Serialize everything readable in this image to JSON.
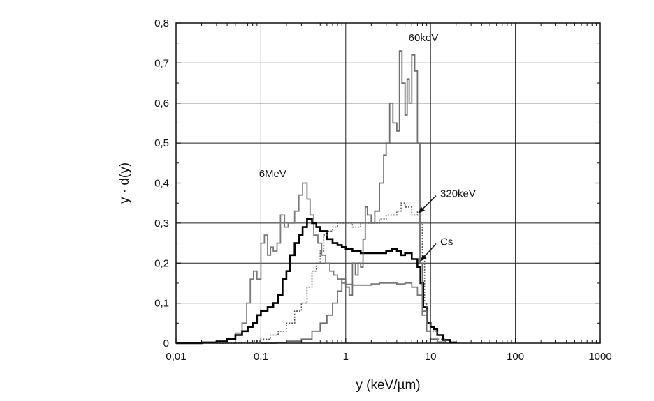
{
  "chart_data": {
    "type": "line",
    "title": "",
    "xlabel": "y (keV/µm)",
    "ylabel": "y · d(y)",
    "x_scale": "log",
    "xlim": [
      0.01,
      1000
    ],
    "ylim": [
      0,
      0.8
    ],
    "grid": true,
    "x_ticks": [
      {
        "value": 0.01,
        "label": "0,01"
      },
      {
        "value": 0.1,
        "label": "0,1"
      },
      {
        "value": 1,
        "label": "1"
      },
      {
        "value": 10,
        "label": "10"
      },
      {
        "value": 100,
        "label": "100"
      },
      {
        "value": 1000,
        "label": "1000"
      }
    ],
    "y_ticks": [
      {
        "value": 0,
        "label": "0"
      },
      {
        "value": 0.1,
        "label": "0,1"
      },
      {
        "value": 0.2,
        "label": "0,2"
      },
      {
        "value": 0.3,
        "label": "0,3"
      },
      {
        "value": 0.4,
        "label": "0,4"
      },
      {
        "value": 0.5,
        "label": "0,5"
      },
      {
        "value": 0.6,
        "label": "0,6"
      },
      {
        "value": 0.7,
        "label": "0,7"
      },
      {
        "value": 0.8,
        "label": "0,8"
      }
    ],
    "annotations": [
      {
        "text": "60keV",
        "x": 5.5,
        "y": 0.755,
        "arrow": false
      },
      {
        "text": "6MeV",
        "x": 0.095,
        "y": 0.415,
        "arrow": false
      },
      {
        "text": "320keV",
        "x": 13,
        "y": 0.365,
        "arrow": true,
        "arrow_to": [
          7.2,
          0.325
        ]
      },
      {
        "text": "Cs",
        "x": 13,
        "y": 0.245,
        "arrow": true,
        "arrow_to": [
          7.6,
          0.205
        ]
      }
    ],
    "series": [
      {
        "label": "6MeV",
        "color": "#7a7a7a",
        "style": "solid",
        "width": 1.8,
        "points": [
          [
            0.01,
            0
          ],
          [
            0.02,
            0.002
          ],
          [
            0.03,
            0.006
          ],
          [
            0.04,
            0.012
          ],
          [
            0.05,
            0.025
          ],
          [
            0.06,
            0.05
          ],
          [
            0.068,
            0.1
          ],
          [
            0.075,
            0.16
          ],
          [
            0.082,
            0.18
          ],
          [
            0.09,
            0.16
          ],
          [
            0.1,
            0.25
          ],
          [
            0.11,
            0.27
          ],
          [
            0.12,
            0.22
          ],
          [
            0.13,
            0.24
          ],
          [
            0.14,
            0.23
          ],
          [
            0.155,
            0.25
          ],
          [
            0.17,
            0.32
          ],
          [
            0.19,
            0.29
          ],
          [
            0.21,
            0.3
          ],
          [
            0.23,
            0.3
          ],
          [
            0.25,
            0.33
          ],
          [
            0.28,
            0.37
          ],
          [
            0.31,
            0.4
          ],
          [
            0.35,
            0.36
          ],
          [
            0.38,
            0.32
          ],
          [
            0.42,
            0.27
          ],
          [
            0.47,
            0.25
          ],
          [
            0.52,
            0.22
          ],
          [
            0.58,
            0.2
          ],
          [
            0.65,
            0.18
          ],
          [
            0.72,
            0.17
          ],
          [
            0.8,
            0.16
          ],
          [
            0.9,
            0.15
          ],
          [
            1.0,
            0.147
          ],
          [
            1.2,
            0.145
          ],
          [
            1.5,
            0.145
          ],
          [
            2.0,
            0.148
          ],
          [
            2.5,
            0.15
          ],
          [
            3.0,
            0.15
          ],
          [
            4.0,
            0.148
          ],
          [
            5.0,
            0.15
          ],
          [
            6.0,
            0.14
          ],
          [
            7.0,
            0.12
          ],
          [
            8.0,
            0.07
          ],
          [
            9.0,
            0.03
          ],
          [
            10,
            0.01
          ],
          [
            12,
            0.003
          ],
          [
            15,
            0
          ]
        ]
      },
      {
        "label": "Cs",
        "color": "#000000",
        "style": "solid",
        "width": 2.6,
        "points": [
          [
            0.01,
            0
          ],
          [
            0.02,
            0.002
          ],
          [
            0.03,
            0.004
          ],
          [
            0.04,
            0.01
          ],
          [
            0.05,
            0.02
          ],
          [
            0.06,
            0.03
          ],
          [
            0.07,
            0.04
          ],
          [
            0.08,
            0.05
          ],
          [
            0.09,
            0.07
          ],
          [
            0.1,
            0.08
          ],
          [
            0.12,
            0.09
          ],
          [
            0.14,
            0.1
          ],
          [
            0.16,
            0.12
          ],
          [
            0.18,
            0.16
          ],
          [
            0.2,
            0.18
          ],
          [
            0.22,
            0.22
          ],
          [
            0.25,
            0.25
          ],
          [
            0.28,
            0.27
          ],
          [
            0.31,
            0.29
          ],
          [
            0.35,
            0.31
          ],
          [
            0.4,
            0.3
          ],
          [
            0.45,
            0.29
          ],
          [
            0.5,
            0.28
          ],
          [
            0.6,
            0.26
          ],
          [
            0.7,
            0.25
          ],
          [
            0.8,
            0.245
          ],
          [
            0.9,
            0.24
          ],
          [
            1.0,
            0.235
          ],
          [
            1.2,
            0.23
          ],
          [
            1.5,
            0.225
          ],
          [
            2.0,
            0.225
          ],
          [
            2.5,
            0.225
          ],
          [
            3.0,
            0.23
          ],
          [
            3.5,
            0.235
          ],
          [
            4.0,
            0.23
          ],
          [
            4.5,
            0.22
          ],
          [
            5.0,
            0.225
          ],
          [
            6.0,
            0.21
          ],
          [
            7.0,
            0.19
          ],
          [
            7.6,
            0.15
          ],
          [
            8.2,
            0.09
          ],
          [
            9.0,
            0.05
          ],
          [
            10,
            0.04
          ],
          [
            11,
            0.035
          ],
          [
            12,
            0.02
          ],
          [
            14,
            0.008
          ],
          [
            17,
            0.002
          ],
          [
            20,
            0
          ]
        ]
      },
      {
        "label": "320keV",
        "color": "#555555",
        "style": "dotted",
        "width": 1.6,
        "points": [
          [
            0.03,
            0
          ],
          [
            0.05,
            0.002
          ],
          [
            0.08,
            0.005
          ],
          [
            0.1,
            0.01
          ],
          [
            0.13,
            0.02
          ],
          [
            0.16,
            0.03
          ],
          [
            0.2,
            0.05
          ],
          [
            0.25,
            0.08
          ],
          [
            0.3,
            0.1
          ],
          [
            0.35,
            0.14
          ],
          [
            0.4,
            0.18
          ],
          [
            0.45,
            0.2
          ],
          [
            0.5,
            0.23
          ],
          [
            0.55,
            0.27
          ],
          [
            0.6,
            0.28
          ],
          [
            0.7,
            0.29
          ],
          [
            0.8,
            0.3
          ],
          [
            1.0,
            0.3
          ],
          [
            1.2,
            0.29
          ],
          [
            1.5,
            0.3
          ],
          [
            2.0,
            0.3
          ],
          [
            2.5,
            0.31
          ],
          [
            3.0,
            0.32
          ],
          [
            4.0,
            0.33
          ],
          [
            4.5,
            0.35
          ],
          [
            5.0,
            0.34
          ],
          [
            6.0,
            0.32
          ],
          [
            7.0,
            0.33
          ],
          [
            7.5,
            0.3
          ],
          [
            8.0,
            0.22
          ],
          [
            8.5,
            0.1
          ],
          [
            9.0,
            0.05
          ],
          [
            10,
            0.03
          ],
          [
            12,
            0.01
          ],
          [
            15,
            0
          ]
        ]
      },
      {
        "label": "60keV",
        "color": "#6f6f6f",
        "style": "solid",
        "width": 1.8,
        "points": [
          [
            0.1,
            0
          ],
          [
            0.15,
            0.002
          ],
          [
            0.2,
            0.005
          ],
          [
            0.3,
            0.01
          ],
          [
            0.4,
            0.03
          ],
          [
            0.5,
            0.05
          ],
          [
            0.6,
            0.07
          ],
          [
            0.7,
            0.1
          ],
          [
            0.8,
            0.13
          ],
          [
            0.9,
            0.16
          ],
          [
            1.0,
            0.14
          ],
          [
            1.1,
            0.12
          ],
          [
            1.2,
            0.2
          ],
          [
            1.3,
            0.17
          ],
          [
            1.4,
            0.2
          ],
          [
            1.5,
            0.19
          ],
          [
            1.6,
            0.26
          ],
          [
            1.7,
            0.34
          ],
          [
            1.8,
            0.32
          ],
          [
            2.0,
            0.3
          ],
          [
            2.2,
            0.33
          ],
          [
            2.5,
            0.4
          ],
          [
            2.8,
            0.47
          ],
          [
            3.0,
            0.5
          ],
          [
            3.3,
            0.6
          ],
          [
            3.6,
            0.55
          ],
          [
            4.0,
            0.53
          ],
          [
            4.3,
            0.73
          ],
          [
            4.6,
            0.65
          ],
          [
            5.0,
            0.57
          ],
          [
            5.3,
            0.66
          ],
          [
            5.6,
            0.6
          ],
          [
            6.0,
            0.72
          ],
          [
            6.5,
            0.68
          ],
          [
            7.0,
            0.5
          ],
          [
            7.5,
            0.2
          ],
          [
            8.0,
            0.08
          ],
          [
            9.0,
            0.03
          ],
          [
            10,
            0.01
          ],
          [
            12,
            0
          ]
        ]
      }
    ]
  }
}
